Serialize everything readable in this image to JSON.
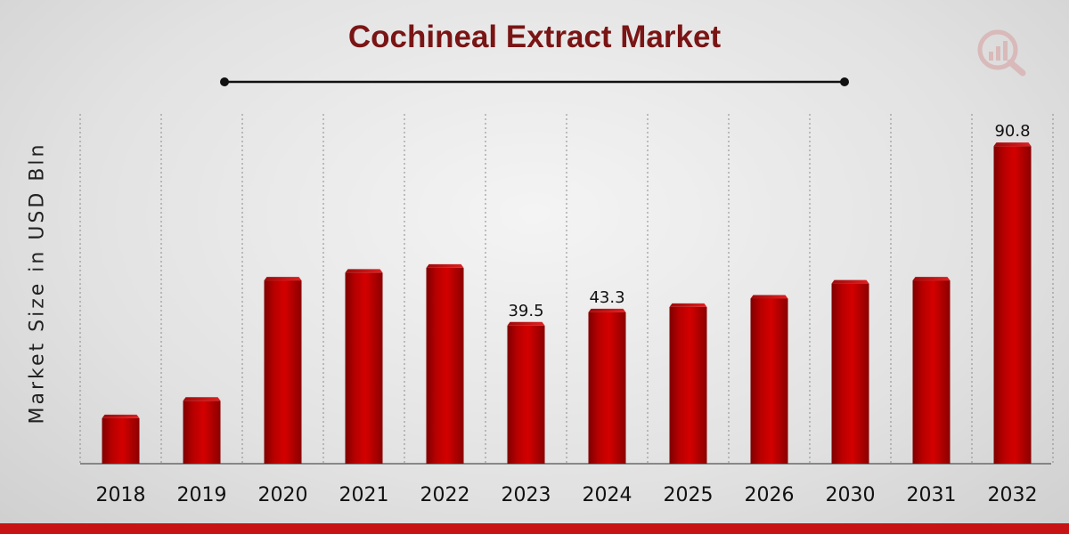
{
  "chart_data": {
    "type": "bar",
    "title": "Cochineal Extract Market",
    "xlabel": "",
    "ylabel": "Market Size in USD Bln",
    "categories": [
      "2018",
      "2019",
      "2020",
      "2021",
      "2022",
      "2023",
      "2024",
      "2025",
      "2026",
      "2030",
      "2031",
      "2032"
    ],
    "values": [
      13.0,
      18.0,
      52.4,
      54.6,
      56.0,
      39.5,
      43.3,
      44.8,
      47.2,
      51.5,
      52.4,
      90.8
    ],
    "data_labels": [
      {
        "category": "2023",
        "text": "39.5"
      },
      {
        "category": "2024",
        "text": "43.3"
      },
      {
        "category": "2032",
        "text": "90.8"
      }
    ],
    "grid": "vertical dotted separators",
    "colors": {
      "bar": "#c00000",
      "bar_dark": "#7e0000",
      "title": "#7a1515",
      "accent_strip": "#c71313"
    }
  }
}
